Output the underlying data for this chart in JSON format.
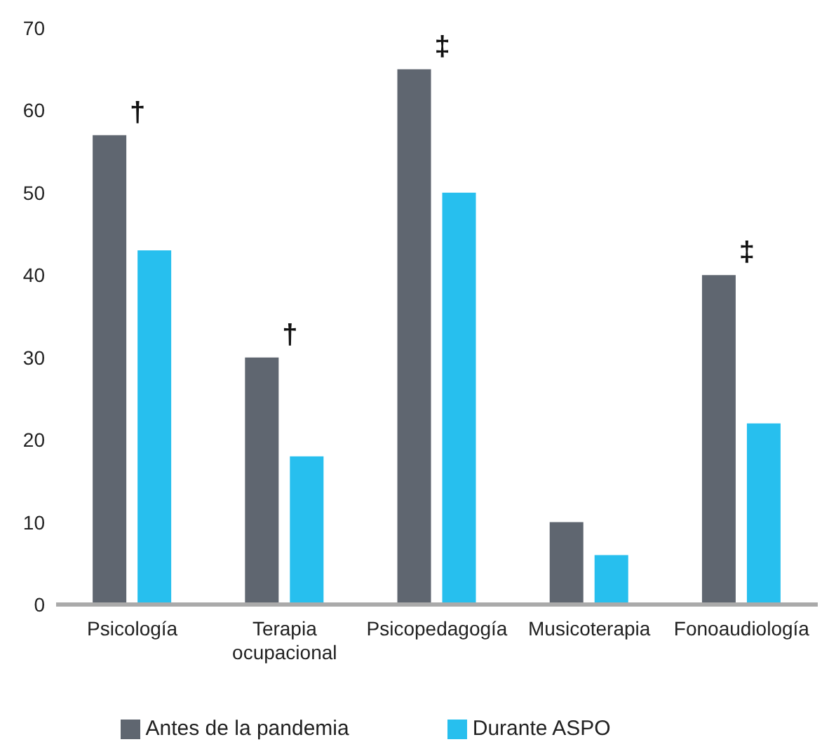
{
  "chart_data": {
    "type": "bar",
    "categories": [
      "Psicología",
      "Terapia ocupacional",
      "Psicopedagogía",
      "Musicoterapia",
      "Fonoaudiología"
    ],
    "series": [
      {
        "name": "Antes de la pandemia",
        "color": "#5f6670",
        "values": [
          57,
          30,
          65,
          10,
          40
        ],
        "value_labels": [
          "†",
          "†",
          "‡",
          null,
          "‡"
        ]
      },
      {
        "name": "Durante ASPO",
        "color": "#27bfee",
        "values": [
          43,
          18,
          50,
          6,
          22
        ]
      }
    ],
    "ylim": [
      0,
      70
    ],
    "yticks": [
      0,
      10,
      20,
      30,
      40,
      50,
      60,
      70
    ],
    "grid": false,
    "legend": "bottom"
  }
}
